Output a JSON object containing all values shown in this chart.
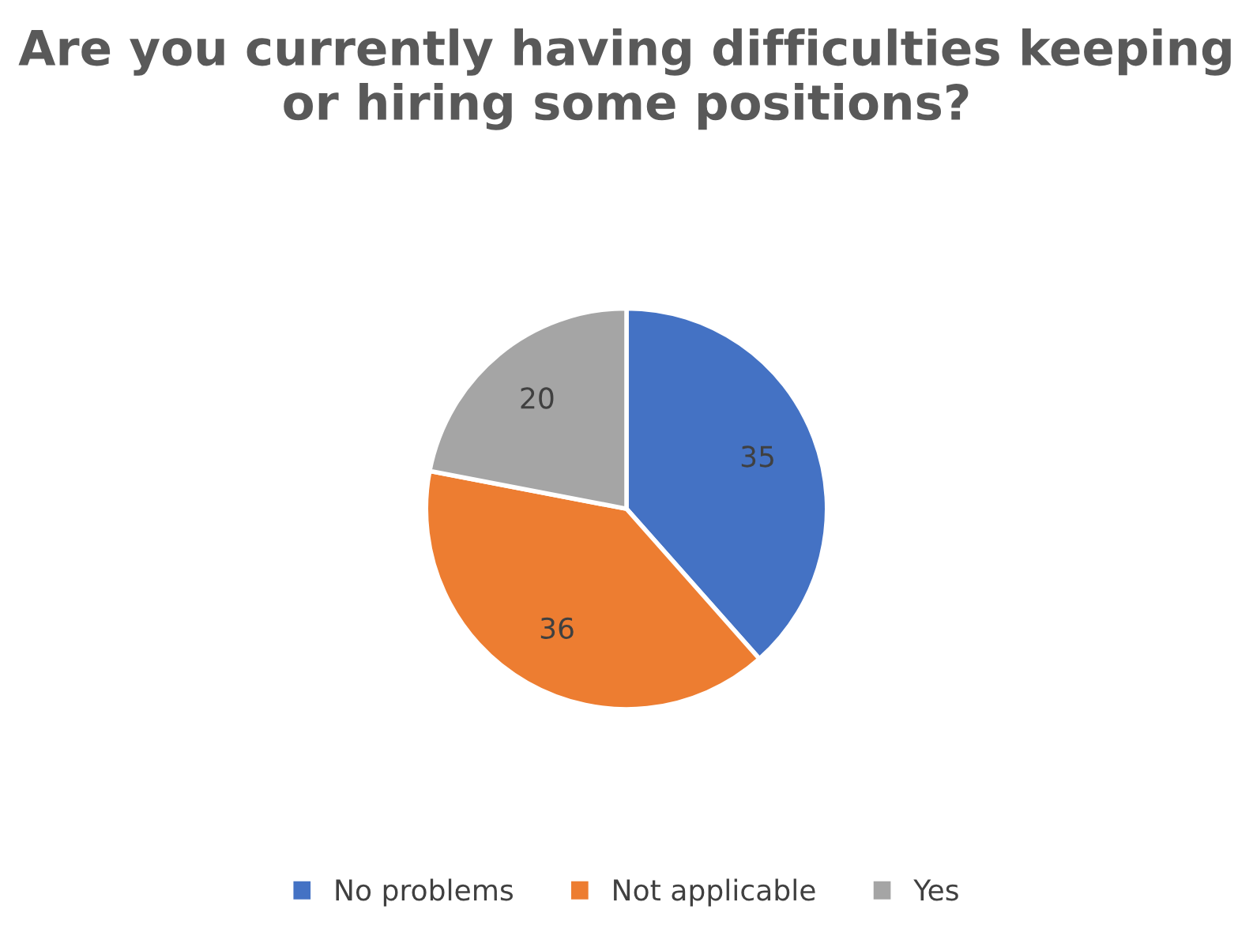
{
  "chart_data": {
    "type": "pie",
    "title": "Are you currently having difficulties keeping or hiring some positions?",
    "categories": [
      "No problems",
      "Not applicable",
      "Yes"
    ],
    "values": [
      35,
      36,
      20
    ],
    "colors": [
      "#4472c4",
      "#ed7d31",
      "#a5a5a5"
    ],
    "data_labels": true,
    "legend": "bottom"
  }
}
